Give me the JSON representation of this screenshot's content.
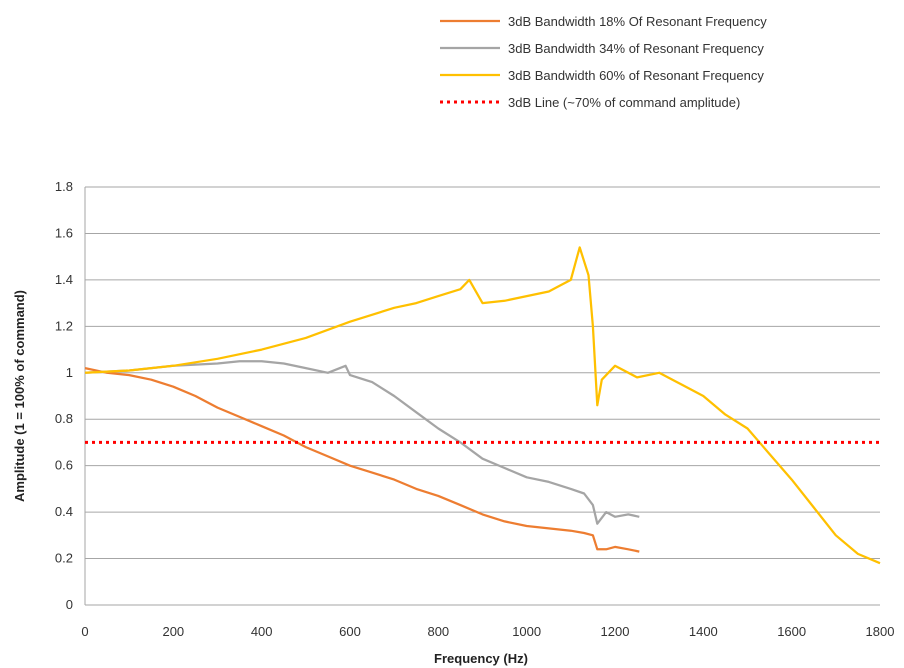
{
  "chart_data": {
    "type": "line",
    "title": "",
    "xlabel": "Frequency (Hz)",
    "ylabel": "Amplitude (1 = 100% of command)",
    "xlim": [
      0,
      1800
    ],
    "ylim": [
      0,
      1.8
    ],
    "xticks": [
      "0",
      "200",
      "400",
      "600",
      "800",
      "1000",
      "1200",
      "1400",
      "1600",
      "1800"
    ],
    "yticks": [
      "0",
      "0.2",
      "0.4",
      "0.6",
      "0.8",
      "1",
      "1.2",
      "1.4",
      "1.6",
      "1.8"
    ],
    "grid": "horizontal",
    "legend_position": "top-right",
    "series": [
      {
        "name": "3dB Bandwidth 18% Of Resonant Frequency",
        "color": "#ed7d31",
        "style": "solid",
        "x": [
          0,
          50,
          100,
          150,
          200,
          250,
          300,
          350,
          400,
          450,
          500,
          550,
          600,
          650,
          700,
          750,
          800,
          850,
          900,
          950,
          1000,
          1050,
          1100,
          1130,
          1150,
          1160,
          1180,
          1200,
          1230,
          1255
        ],
        "y": [
          1.02,
          1.0,
          0.99,
          0.97,
          0.94,
          0.9,
          0.85,
          0.81,
          0.77,
          0.73,
          0.68,
          0.64,
          0.6,
          0.57,
          0.54,
          0.5,
          0.47,
          0.43,
          0.39,
          0.36,
          0.34,
          0.33,
          0.32,
          0.31,
          0.3,
          0.24,
          0.24,
          0.25,
          0.24,
          0.23
        ]
      },
      {
        "name": "3dB Bandwidth 34% of Resonant Frequency",
        "color": "#a5a5a5",
        "style": "solid",
        "x": [
          0,
          100,
          200,
          300,
          350,
          400,
          450,
          500,
          550,
          590,
          600,
          650,
          700,
          750,
          800,
          850,
          900,
          950,
          1000,
          1050,
          1100,
          1130,
          1150,
          1160,
          1180,
          1200,
          1230,
          1255
        ],
        "y": [
          1.0,
          1.01,
          1.03,
          1.04,
          1.05,
          1.05,
          1.04,
          1.02,
          1.0,
          1.03,
          0.99,
          0.96,
          0.9,
          0.83,
          0.76,
          0.7,
          0.63,
          0.59,
          0.55,
          0.53,
          0.5,
          0.48,
          0.43,
          0.35,
          0.4,
          0.38,
          0.39,
          0.38
        ]
      },
      {
        "name": "3dB Bandwidth 60% of Resonant Frequency",
        "color": "#ffc000",
        "style": "solid",
        "x": [
          0,
          100,
          200,
          300,
          400,
          500,
          600,
          700,
          750,
          800,
          850,
          870,
          900,
          950,
          1000,
          1050,
          1080,
          1100,
          1120,
          1140,
          1150,
          1160,
          1170,
          1200,
          1250,
          1300,
          1350,
          1400,
          1450,
          1500,
          1550,
          1600,
          1650,
          1700,
          1750,
          1800
        ],
        "y": [
          1.0,
          1.01,
          1.03,
          1.06,
          1.1,
          1.15,
          1.22,
          1.28,
          1.3,
          1.33,
          1.36,
          1.4,
          1.3,
          1.31,
          1.33,
          1.35,
          1.38,
          1.4,
          1.54,
          1.42,
          1.2,
          0.86,
          0.97,
          1.03,
          0.98,
          1.0,
          0.95,
          0.9,
          0.82,
          0.76,
          0.65,
          0.54,
          0.42,
          0.3,
          0.22,
          0.18
        ]
      },
      {
        "name": "3dB Line (~70% of command amplitude)",
        "color": "#ff0000",
        "style": "dotted",
        "x": [
          0,
          1800
        ],
        "y": [
          0.7,
          0.7
        ]
      }
    ]
  }
}
